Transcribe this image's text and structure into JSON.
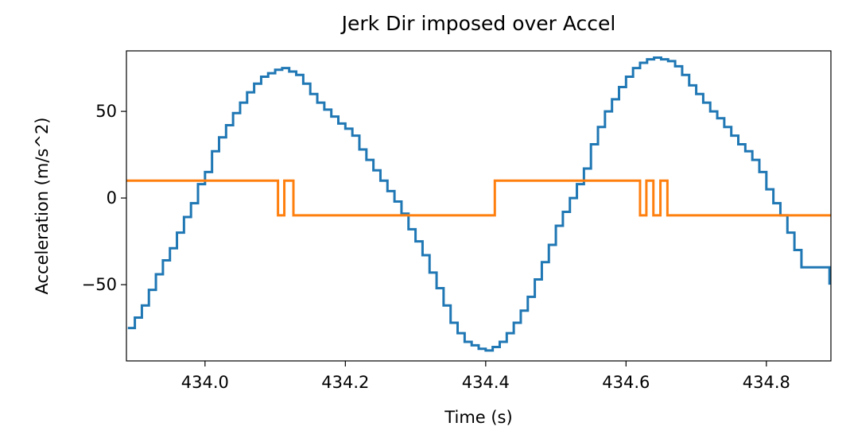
{
  "chart_data": {
    "type": "line",
    "step": true,
    "title": "Jerk Dir imposed over Accel",
    "xlabel": "Time (s)",
    "ylabel": "Acceleration (m/s^2)",
    "xlim": [
      433.888,
      434.892
    ],
    "ylim": [
      -94,
      84.9
    ],
    "xticks": [
      {
        "value": 434.0,
        "label": "434.0"
      },
      {
        "value": 434.2,
        "label": "434.2"
      },
      {
        "value": 434.4,
        "label": "434.4"
      },
      {
        "value": 434.6,
        "label": "434.6"
      },
      {
        "value": 434.8,
        "label": "434.8"
      }
    ],
    "yticks": [
      {
        "value": -50,
        "label": "−50"
      },
      0,
      50
    ],
    "series": [
      {
        "color": "#1f77b4",
        "x": [
          433.89,
          433.9,
          433.91,
          433.92,
          433.93,
          433.94,
          433.95,
          433.96,
          433.97,
          433.98,
          433.99,
          434.0,
          434.01,
          434.02,
          434.03,
          434.04,
          434.05,
          434.06,
          434.07,
          434.08,
          434.09,
          434.1,
          434.11,
          434.12,
          434.13,
          434.14,
          434.15,
          434.16,
          434.17,
          434.18,
          434.19,
          434.2,
          434.21,
          434.22,
          434.23,
          434.24,
          434.25,
          434.26,
          434.27,
          434.28,
          434.29,
          434.3,
          434.31,
          434.32,
          434.33,
          434.34,
          434.35,
          434.36,
          434.37,
          434.38,
          434.39,
          434.4,
          434.41,
          434.42,
          434.43,
          434.44,
          434.45,
          434.46,
          434.47,
          434.48,
          434.49,
          434.5,
          434.51,
          434.52,
          434.53,
          434.54,
          434.55,
          434.56,
          434.57,
          434.58,
          434.59,
          434.6,
          434.61,
          434.62,
          434.63,
          434.64,
          434.65,
          434.66,
          434.67,
          434.68,
          434.69,
          434.7,
          434.71,
          434.72,
          434.73,
          434.74,
          434.75,
          434.76,
          434.77,
          434.78,
          434.79,
          434.8,
          434.81,
          434.82,
          434.83,
          434.84,
          434.85,
          434.86,
          434.87,
          434.88,
          434.89
        ],
        "values": [
          -75,
          -69,
          -62,
          -53,
          -44,
          -36,
          -29,
          -20,
          -11,
          -3,
          8,
          15,
          27,
          35,
          42,
          49,
          55,
          61,
          66,
          70,
          72,
          74,
          75,
          73,
          71,
          66,
          60,
          55,
          51,
          47,
          43,
          40,
          36,
          28,
          22,
          16,
          10,
          4,
          -2,
          -9,
          -18,
          -25,
          -33,
          -43,
          -52,
          -62,
          -72,
          -78,
          -83,
          -85,
          -87,
          -88,
          -86,
          -83,
          -78,
          -72,
          -65,
          -57,
          -47,
          -37,
          -27,
          -16,
          -8,
          0,
          8,
          17,
          31,
          41,
          50,
          57,
          64,
          70,
          75,
          78,
          80,
          81,
          80,
          79,
          76,
          71,
          65,
          60,
          55,
          50,
          46,
          41,
          36,
          31,
          27,
          22,
          15,
          5,
          -3,
          -10,
          -20,
          -30,
          -40,
          -40,
          -40,
          -40,
          -50
        ]
      },
      {
        "color": "#ff7f0e",
        "x": [
          433.888,
          434.104,
          434.113,
          434.126,
          434.413,
          434.62,
          434.629,
          434.639,
          434.649,
          434.659,
          434.892
        ],
        "values": [
          10,
          -10,
          10,
          -10,
          10,
          -10,
          10,
          -10,
          10,
          -10,
          -10
        ]
      }
    ]
  }
}
